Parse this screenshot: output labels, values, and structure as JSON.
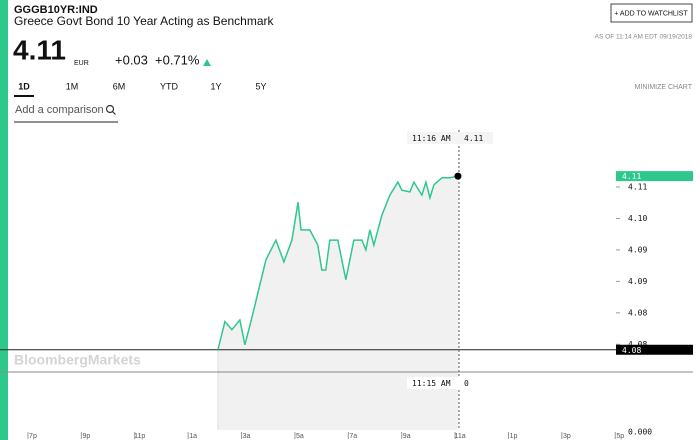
{
  "header": {
    "ticker": "GGGB10YR:IND",
    "name": "Greece Govt Bond 10 Year Acting as Benchmark",
    "watchlist_button": "+ ADD TO WATCHLIST",
    "price": "4.11",
    "currency": "EUR",
    "change": "+0.03",
    "change_pct": "+0.71%",
    "as_of": "AS OF 11:14 AM EDT 09/19/2018"
  },
  "range_tabs": [
    "1D",
    "1M",
    "6M",
    "YTD",
    "1Y",
    "5Y"
  ],
  "selected_tab": 0,
  "minimize": "MINIMIZE CHART",
  "comparison_placeholder": "Add a comparison",
  "chart_data": {
    "type": "line",
    "watermark": "BloombergMarkets",
    "x": [
      6.93,
      7.19,
      7.45,
      7.75,
      7.94,
      8.2,
      8.5,
      8.73,
      9.1,
      9.4,
      9.7,
      9.93,
      10.04,
      10.37,
      10.67,
      10.82,
      10.97,
      11.12,
      11.42,
      11.72,
      12.02,
      12.32,
      12.47,
      12.62,
      12.77,
      13.07,
      13.37,
      13.67,
      13.82,
      14.12,
      14.27,
      14.57,
      14.72,
      14.87,
      15.02,
      15.32,
      15.62,
      15.92
    ],
    "series": [
      {
        "color": "#2ec88d",
        "values": [
          4.076,
          4.0812,
          4.0797,
          4.0815,
          4.0769,
          4.0819,
          4.088,
          4.0926,
          4.0962,
          4.0922,
          4.0962,
          4.1032,
          4.0981,
          4.0981,
          4.0953,
          4.0907,
          4.0907,
          4.0962,
          4.0962,
          4.0889,
          4.0962,
          4.0962,
          4.0944,
          4.0981,
          4.0953,
          4.1008,
          4.1045,
          4.1069,
          4.1054,
          4.1051,
          4.1069,
          4.1045,
          4.1069,
          4.104,
          4.1064,
          4.1077,
          4.1077,
          4.108
        ]
      }
    ],
    "last_label": "4.11",
    "reference": {
      "value": 4.076,
      "label": "4.08"
    },
    "xlim": [
      -0.86,
      21.99
    ],
    "xticks": [
      {
        "value": 0,
        "label": "7p"
      },
      {
        "value": 2,
        "label": "9p"
      },
      {
        "value": 4,
        "label": "11p"
      },
      {
        "value": 6,
        "label": "1a"
      },
      {
        "value": 8,
        "label": "3a"
      },
      {
        "value": 10,
        "label": "5a"
      },
      {
        "value": 12,
        "label": "7a"
      },
      {
        "value": 14,
        "label": "9a"
      },
      {
        "value": 16,
        "label": "11a"
      },
      {
        "value": 18,
        "label": "1p"
      },
      {
        "value": 20,
        "label": "3p"
      },
      {
        "value": 22,
        "label": "5p"
      }
    ],
    "ylim": [
      4.0719,
      4.1165
    ],
    "yticks": [
      {
        "value": 4.106,
        "label": "4.11"
      },
      {
        "value": 4.1002,
        "label": "4.10"
      },
      {
        "value": 4.0944,
        "label": "4.09"
      },
      {
        "value": 4.0886,
        "label": "4.09"
      },
      {
        "value": 4.0828,
        "label": "4.08"
      },
      {
        "value": 4.077,
        "label": "4.08"
      }
    ],
    "crosshair": {
      "time": "11:16 AM",
      "value": "4.11"
    },
    "lower_pane": {
      "time": "11:15 AM",
      "value": "0",
      "axis_label": "0.000"
    }
  }
}
